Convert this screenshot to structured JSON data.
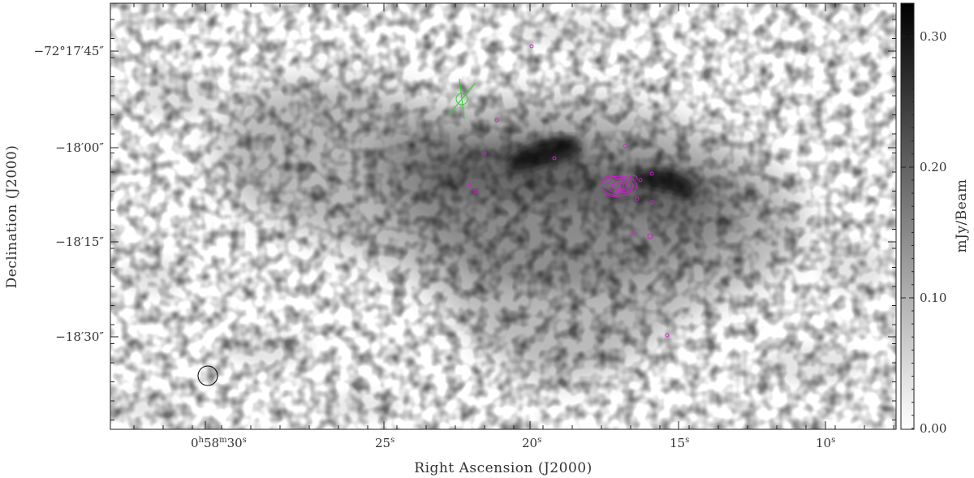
{
  "figure": {
    "image_description": "radio continuum intensity map of an irregular diffuse cloud",
    "xlabel": "Right Ascension (J2000)",
    "ylabel": "Declination (J2000)",
    "x_ticks": [
      {
        "hours": "0",
        "minutes": "58",
        "seconds": "30",
        "text": "30"
      },
      {
        "text": "25"
      },
      {
        "text": "20"
      },
      {
        "text": "15"
      },
      {
        "text": "10"
      }
    ],
    "y_ticks": [
      {
        "text": "−72°17′45″"
      },
      {
        "text": "−18′00″"
      },
      {
        "text": "−18′15″"
      },
      {
        "text": "−18′30″"
      }
    ],
    "colorbar": {
      "label": "mJy/Beam",
      "ticks": [
        "0.30",
        "0.20",
        "0.10",
        "0.00"
      ],
      "cmap": [
        "#ffffff",
        "#000000"
      ]
    },
    "overlays": {
      "contour_color": "#cc22cc",
      "marker_color": "#33cc33",
      "beam_color": "#000000"
    }
  }
}
